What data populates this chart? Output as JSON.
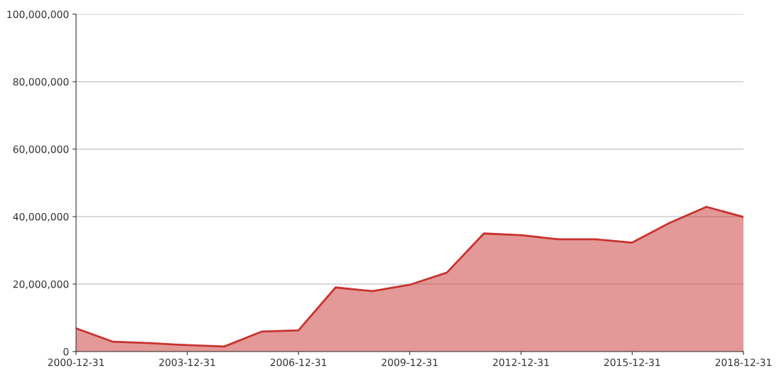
{
  "chart_data": {
    "type": "area",
    "x": [
      "2000-12-31",
      "2001-12-31",
      "2002-12-31",
      "2003-12-31",
      "2004-12-31",
      "2005-12-31",
      "2006-12-31",
      "2007-12-31",
      "2008-12-31",
      "2009-12-31",
      "2010-12-31",
      "2011-12-31",
      "2012-12-31",
      "2013-12-31",
      "2014-12-31",
      "2015-12-31",
      "2016-12-31",
      "2017-12-31",
      "2018-12-31"
    ],
    "series": [
      {
        "color": "#c8332f",
        "values": [
          6900000,
          2900000,
          2500000,
          1900000,
          1500000,
          5900000,
          6300000,
          19000000,
          17900000,
          19800000,
          23400000,
          35000000,
          34500000,
          33300000,
          33300000,
          32300000,
          38100000,
          42900000,
          39900000
        ]
      }
    ],
    "xlim": [
      "2000-12-31",
      "2018-12-31"
    ],
    "xticks": [
      {
        "value": "2000-12-31",
        "label": "2000-12-31"
      },
      {
        "value": "2003-12-31",
        "label": "2003-12-31"
      },
      {
        "value": "2006-12-31",
        "label": "2006-12-31"
      },
      {
        "value": "2009-12-31",
        "label": "2009-12-31"
      },
      {
        "value": "2012-12-31",
        "label": "2012-12-31"
      },
      {
        "value": "2015-12-31",
        "label": "2015-12-31"
      },
      {
        "value": "2018-12-31",
        "label": "2018-12-31"
      }
    ],
    "ylim": [
      0,
      100000000
    ],
    "yticks": [
      0,
      {
        "value": 20000000,
        "label": "20,000,000"
      },
      {
        "value": 40000000,
        "label": "40,000,000"
      },
      {
        "value": 60000000,
        "label": "60,000,000"
      },
      {
        "value": 80000000,
        "label": "80,000,000"
      },
      {
        "value": 100000000,
        "label": "100,000,000"
      }
    ],
    "grid": "y",
    "legend": false
  }
}
